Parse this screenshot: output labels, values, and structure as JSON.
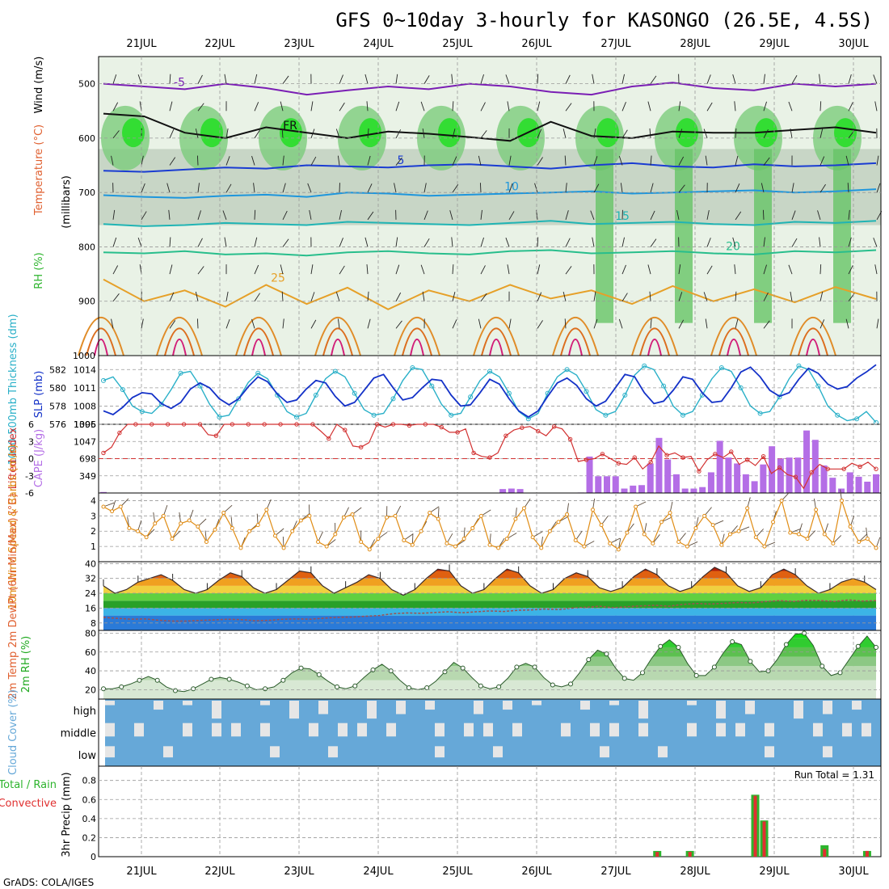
{
  "title": "GFS 0~10day 3-hourly for KASONGO (26.5E, 4.5S)",
  "credit": "GrADS: COLA/IGES",
  "run_total": "Run Total = 1.31",
  "colors": {
    "rh": "#2db42d",
    "temperature": "#e06030",
    "wind": "#202020",
    "thickness": "#2ab0c8",
    "slp": "#1432c8",
    "lifted_index": "#d23232",
    "cape": "#b46ee6",
    "wind10": "#e08c14",
    "dewpoint": "#a05050",
    "rh2m": "#22aa22",
    "cloud": "#66a8d8",
    "cloud_gap": "#e6e6e6",
    "precip_total": "#2db42d",
    "precip_conv": "#e03030"
  },
  "chart_data": [
    {
      "type": "heatmap",
      "panel": "upper-air",
      "title": "Temperature (°C) / Wind (m/s) / RH (%)",
      "ylabel_lines": [
        "RH (%)",
        "Temperature (°C)",
        "Wind (m/s)",
        "(millibars)"
      ],
      "x_date_labels": [
        "21JUL",
        "22JUL",
        "23JUL",
        "24JUL",
        "25JUL",
        "26JUL",
        "27JUL",
        "28JUL",
        "29JUL",
        "30JUL"
      ],
      "y_ticks": [
        500,
        600,
        700,
        800,
        900,
        1000
      ],
      "ylim": [
        1000,
        450
      ],
      "isotherms": [
        {
          "label": "-5",
          "color": "#7a1eb4",
          "level": [
            500,
            505,
            510,
            500,
            508,
            520,
            512,
            505,
            510,
            500,
            505,
            515,
            520,
            505,
            498,
            508,
            512,
            500,
            505,
            500
          ]
        },
        {
          "label": "FR",
          "color": "#111111",
          "level": [
            555,
            560,
            590,
            600,
            580,
            590,
            600,
            588,
            592,
            598,
            605,
            570,
            596,
            600,
            588,
            590,
            590,
            585,
            580,
            590
          ]
        },
        {
          "label": "5",
          "color": "#1a3cd2",
          "level": [
            660,
            662,
            658,
            654,
            656,
            650,
            652,
            654,
            650,
            648,
            652,
            656,
            650,
            646,
            652,
            654,
            648,
            652,
            650,
            646
          ]
        },
        {
          "label": "10",
          "color": "#1e96dc",
          "level": [
            705,
            708,
            710,
            706,
            704,
            708,
            700,
            702,
            706,
            704,
            702,
            700,
            698,
            702,
            700,
            698,
            696,
            700,
            698,
            694
          ]
        },
        {
          "label": "15",
          "color": "#20b4b4",
          "level": [
            758,
            762,
            760,
            756,
            758,
            760,
            754,
            756,
            758,
            760,
            756,
            752,
            758,
            756,
            754,
            758,
            760,
            754,
            756,
            752
          ]
        },
        {
          "label": "20",
          "color": "#28be8c",
          "level": [
            810,
            812,
            808,
            814,
            812,
            816,
            810,
            808,
            812,
            814,
            808,
            806,
            812,
            810,
            808,
            812,
            814,
            808,
            810,
            806
          ]
        },
        {
          "label": "25",
          "color": "#e6a028",
          "level": [
            860,
            900,
            880,
            910,
            870,
            905,
            875,
            915,
            880,
            900,
            870,
            895,
            880,
            905,
            872,
            900,
            878,
            902,
            874,
            896
          ]
        }
      ]
    },
    {
      "type": "line",
      "panel": "thickness-slp",
      "ylabel_left": "1000-500mb Thickness (dm)",
      "ylabel_right": "SLP (mb)",
      "left_ticks": [
        576,
        578,
        580,
        582
      ],
      "right_ticks": [
        1005,
        1008,
        1011,
        1014
      ],
      "series": [
        {
          "name": "Thickness (dm)",
          "axis": "left",
          "ylim": [
            576,
            583
          ],
          "values": [
            580.8,
            581.2,
            579.8,
            578,
            577.4,
            577.2,
            578.2,
            579.8,
            581.6,
            581.8,
            580.2,
            578.2,
            576.8,
            577,
            578.8,
            580.6,
            581.6,
            581,
            579.2,
            577.4,
            576.8,
            577.2,
            579.2,
            581,
            581.8,
            581.2,
            579.4,
            577.6,
            577,
            577.2,
            578.8,
            580.8,
            582.2,
            582,
            580.2,
            578.2,
            577,
            577.2,
            579,
            580.8,
            581.8,
            581.2,
            579.4,
            577.4,
            576.6,
            577.2,
            579.4,
            581.2,
            582,
            581.4,
            579.6,
            577.6,
            577,
            577.4,
            579.2,
            581.4,
            582.4,
            582,
            580.2,
            578,
            577,
            577.4,
            579.2,
            581,
            582.2,
            581.8,
            580,
            578,
            577.2,
            577.4,
            579,
            581,
            582.4,
            582,
            580.2,
            578,
            577,
            576.4,
            576.6,
            577.4,
            576.2
          ]
        },
        {
          "name": "SLP (mb)",
          "axis": "right",
          "ylim": [
            1005,
            1015.5
          ],
          "values": [
            1007.2,
            1006.6,
            1007.8,
            1009.4,
            1010.2,
            1010,
            1008.4,
            1007.6,
            1008.6,
            1010.8,
            1011.8,
            1011,
            1009.2,
            1008.2,
            1009.2,
            1011.2,
            1012.8,
            1012,
            1010,
            1008.6,
            1009,
            1010.8,
            1012.2,
            1011.8,
            1009.6,
            1008,
            1008.6,
            1010.6,
            1012.6,
            1013.2,
            1011,
            1009,
            1009.4,
            1011,
            1012.4,
            1012.2,
            1009.8,
            1008,
            1008.2,
            1010.2,
            1012.4,
            1011.6,
            1009.2,
            1007.2,
            1006.2,
            1007.2,
            1009.6,
            1011.8,
            1012.6,
            1011.4,
            1009.2,
            1008,
            1008.8,
            1011,
            1013.2,
            1012.8,
            1010.2,
            1008.4,
            1008.8,
            1010.6,
            1012.8,
            1012.4,
            1010.2,
            1008.6,
            1008.8,
            1011,
            1013.6,
            1014.4,
            1012.8,
            1010.6,
            1009.6,
            1010.2,
            1012.4,
            1014.2,
            1013.4,
            1011.6,
            1010.8,
            1011.2,
            1012.6,
            1013.6,
            1014.8
          ]
        }
      ]
    },
    {
      "type": "bar",
      "panel": "cape-li",
      "ylabel_left": "Lifted Index",
      "ylabel_right": "CAPE (J/kg)",
      "li_ticks": [
        -6,
        -3,
        0,
        3,
        6
      ],
      "cape_ticks": [
        349,
        698,
        1047,
        1396
      ],
      "series": [
        {
          "name": "Lifted Index",
          "axis": "left",
          "ylim": [
            6,
            -6
          ],
          "values": [
            1,
            2,
            4.5,
            6,
            6,
            6,
            6,
            6,
            6,
            6,
            6,
            6,
            6,
            4.2,
            4,
            6,
            6,
            6,
            6,
            6,
            6,
            6,
            6,
            6,
            6,
            6,
            6,
            4.8,
            3.5,
            6,
            5,
            2.2,
            2,
            2.8,
            6,
            5.5,
            6,
            6,
            5.8,
            6,
            6,
            6,
            5.5,
            4.6,
            4.6,
            5.2,
            1,
            0.4,
            0.2,
            1,
            4,
            5,
            5.4,
            5.6,
            4.8,
            4,
            5.6,
            5.2,
            3.4,
            -0.5,
            -0.2,
            0,
            0.8,
            0,
            -0.8,
            -1,
            0.2,
            -1.8,
            -0.6,
            2.2,
            0.6,
            1,
            0.2,
            0.4,
            -2.2,
            -0.2,
            0.8,
            0.2,
            1.2,
            -1,
            -0.2,
            -1.2,
            0.4,
            -2.6,
            -1.6,
            -2.8,
            -3.2,
            -5.2,
            -2.4,
            -1,
            -1.8,
            -1.8,
            -1.8,
            -0.8,
            -1.4,
            -0.6,
            -1.8
          ]
        },
        {
          "name": "CAPE (J/kg)",
          "axis": "right",
          "ylim": [
            0,
            1396
          ],
          "values": [
            20,
            0,
            0,
            0,
            0,
            0,
            0,
            0,
            0,
            0,
            0,
            0,
            0,
            0,
            0,
            0,
            0,
            0,
            0,
            0,
            0,
            0,
            0,
            0,
            0,
            0,
            0,
            0,
            0,
            0,
            0,
            0,
            0,
            0,
            0,
            0,
            0,
            0,
            0,
            0,
            0,
            0,
            0,
            0,
            0,
            0,
            80,
            90,
            80,
            0,
            0,
            0,
            0,
            0,
            0,
            10,
            740,
            340,
            340,
            340,
            90,
            150,
            160,
            600,
            1120,
            680,
            380,
            90,
            90,
            120,
            420,
            1060,
            720,
            600,
            380,
            240,
            580,
            950,
            700,
            720,
            720,
            1270,
            1080,
            560,
            310,
            90,
            420,
            330,
            230,
            380
          ]
        }
      ]
    },
    {
      "type": "line",
      "panel": "wind10m",
      "ylabel": "10m Wind Speed & Barbs (m/s)",
      "y_ticks": [
        1,
        2,
        3,
        4
      ],
      "ylim": [
        0,
        4.5
      ],
      "values": [
        3.6,
        3.3,
        3.6,
        2.2,
        2.0,
        1.6,
        2.5,
        3.0,
        1.5,
        2.5,
        2.7,
        2.3,
        1.3,
        2.1,
        3.2,
        2.2,
        0.9,
        2.0,
        2.4,
        3.4,
        1.7,
        0.9,
        2.0,
        2.7,
        3.0,
        1.3,
        1.0,
        1.8,
        2.9,
        3.1,
        1.3,
        0.8,
        1.5,
        2.9,
        3.0,
        1.4,
        1.1,
        2.0,
        3.2,
        2.8,
        1.2,
        1.0,
        1.5,
        2.2,
        3.0,
        1.1,
        0.9,
        1.5,
        2.8,
        3.5,
        1.6,
        0.9,
        2.0,
        2.6,
        3.1,
        1.4,
        1.0,
        3.4,
        2.4,
        1.2,
        0.8,
        1.9,
        3.6,
        1.8,
        1.2,
        2.6,
        3.2,
        1.3,
        1.0,
        2.2,
        3.0,
        2.4,
        1.1,
        1.8,
        2.0,
        3.5,
        1.6,
        1.0,
        2.6,
        4.0,
        1.9,
        1.8,
        1.5,
        3.4,
        1.8,
        1.2,
        4.0,
        2.3,
        1.3,
        1.5,
        0.9
      ]
    },
    {
      "type": "area",
      "panel": "temp2m",
      "ylabel": "2m Temp 2m DewPt (6hr Min/Max) (°C)",
      "y_ticks": [
        8,
        16,
        24,
        32,
        40
      ],
      "ylim": [
        4,
        41
      ],
      "series": [
        {
          "name": "2m Temp",
          "values": [
            28,
            24,
            26,
            30,
            32,
            34,
            31,
            26,
            24,
            26,
            31,
            35,
            33,
            27,
            24,
            26,
            31,
            36,
            35,
            28,
            24,
            27,
            30,
            34,
            32,
            26,
            23,
            26,
            32,
            37,
            36,
            28,
            24,
            26,
            32,
            37,
            35,
            28,
            24,
            26,
            32,
            35,
            33,
            27,
            25,
            27,
            33,
            37,
            34,
            28,
            25,
            27,
            33,
            38,
            35,
            28,
            25,
            27,
            34,
            37,
            34,
            28,
            24,
            26,
            30,
            32,
            30,
            26
          ]
        },
        {
          "name": "2m DewPt",
          "values": [
            11,
            10.5,
            10,
            10.2,
            9.5,
            9,
            9,
            9.4,
            9.6,
            10,
            9.8,
            9.2,
            9.4,
            10,
            10.2,
            10,
            10.6,
            11,
            11.2,
            11.6,
            12,
            13,
            13.4,
            13.2,
            13.6,
            14,
            13.5,
            14,
            14.5,
            14.2,
            14.8,
            15,
            15.5,
            15.2,
            16,
            16.5,
            17,
            16.2,
            16.8,
            17.2,
            17.5,
            17,
            18,
            18.5,
            18.2,
            18.6,
            19,
            18.8,
            19.5,
            20,
            19.6,
            20.2,
            20,
            19.6,
            20.4,
            19.8,
            20
          ]
        }
      ]
    },
    {
      "type": "area",
      "panel": "rh2m",
      "ylabel": "2m RH (%)",
      "y_ticks": [
        20,
        40,
        60,
        80
      ],
      "ylim": [
        10,
        83
      ],
      "values": [
        21,
        21,
        23,
        26,
        30,
        34,
        30,
        23,
        19,
        18,
        21,
        26,
        31,
        33,
        31,
        28,
        24,
        20,
        21,
        23,
        30,
        38,
        43,
        42,
        36,
        29,
        23,
        21,
        24,
        33,
        41,
        47,
        40,
        30,
        22,
        20,
        22,
        29,
        39,
        49,
        43,
        33,
        24,
        21,
        23,
        32,
        44,
        48,
        44,
        33,
        25,
        23,
        26,
        38,
        52,
        62,
        58,
        43,
        32,
        30,
        38,
        53,
        66,
        73,
        65,
        48,
        35,
        35,
        44,
        59,
        71,
        68,
        50,
        39,
        40,
        52,
        68,
        79,
        80,
        67,
        45,
        35,
        38,
        52,
        66,
        77,
        65
      ]
    },
    {
      "type": "heatmap",
      "panel": "cloud-cover",
      "ylabel": "Cloud Cover (%)",
      "rows": [
        "high",
        "middle",
        "low"
      ]
    },
    {
      "type": "bar",
      "panel": "precip",
      "ylabel": "3hr Precip (mm)",
      "legend": [
        "Total / Rain",
        "Convective"
      ],
      "y_ticks": [
        0,
        0.2,
        0.4,
        0.6,
        0.8
      ],
      "ylim": [
        0,
        0.95
      ],
      "run_total": 1.31,
      "bars": [
        {
          "t": 56.1,
          "total": 0.06,
          "conv": 0.05
        },
        {
          "t": 59.4,
          "total": 0.06,
          "conv": 0.05
        },
        {
          "t": 66.0,
          "total": 0.65,
          "conv": 0.64
        },
        {
          "t": 66.9,
          "total": 0.38,
          "conv": 0.37
        },
        {
          "t": 73.0,
          "total": 0.12,
          "conv": 0.08
        },
        {
          "t": 77.3,
          "total": 0.06,
          "conv": 0.06
        }
      ]
    }
  ]
}
